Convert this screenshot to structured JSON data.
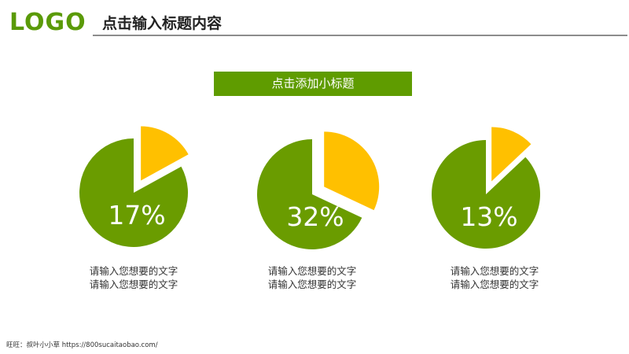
{
  "header": {
    "logo": "LOGO",
    "title": "点击输入标题内容"
  },
  "subtitle": "点击添加小标题",
  "colors": {
    "brand_green": "#5a9a08",
    "pie_green": "#6a9c00",
    "pie_yellow": "#ffc000"
  },
  "chart_data": [
    {
      "type": "pie",
      "values": [
        17,
        83
      ],
      "colors": [
        "#ffc000",
        "#6a9c00"
      ],
      "label": "17%",
      "description": [
        "请输入您想要的文字",
        "请输入您想要的文字"
      ]
    },
    {
      "type": "pie",
      "values": [
        32,
        68
      ],
      "colors": [
        "#ffc000",
        "#6a9c00"
      ],
      "label": "32%",
      "description": [
        "请输入您想要的文字",
        "请输入您想要的文字"
      ]
    },
    {
      "type": "pie",
      "values": [
        13,
        87
      ],
      "colors": [
        "#ffc000",
        "#6a9c00"
      ],
      "label": "13%",
      "description": [
        "请输入您想要的文字",
        "请输入您想要的文字"
      ]
    }
  ],
  "footer": "旺旺：叔叶小小草 https://800sucaitaobao.com/"
}
